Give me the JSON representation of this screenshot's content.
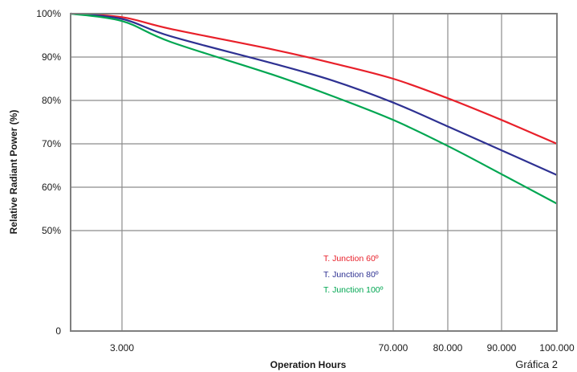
{
  "chart_data": {
    "type": "line",
    "title": "",
    "xlabel": "Operation Hours",
    "ylabel": "Relative Radiant Power (%)",
    "caption": "Gráfica 2",
    "grid": true,
    "x_ticks": [
      {
        "pos": 3000,
        "label": "3.000"
      },
      {
        "pos": 70000,
        "label": "70.000"
      },
      {
        "pos": 80000,
        "label": "80.000"
      },
      {
        "pos": 90000,
        "label": "90.000"
      },
      {
        "pos": 100000,
        "label": "100.000"
      }
    ],
    "y_ticks": [
      {
        "pos": 0,
        "label": "0"
      },
      {
        "pos": 50,
        "label": "50%"
      },
      {
        "pos": 60,
        "label": "60%"
      },
      {
        "pos": 70,
        "label": "70%"
      },
      {
        "pos": 80,
        "label": "80%"
      },
      {
        "pos": 90,
        "label": "90%"
      },
      {
        "pos": 100,
        "label": "100%"
      }
    ],
    "series": [
      {
        "name": "T. Junction 60º",
        "color": "#e8202a",
        "points": [
          [
            0,
            100
          ],
          [
            3000,
            99.2
          ],
          [
            15000,
            96.5
          ],
          [
            40000,
            91.8
          ],
          [
            55000,
            88.6
          ],
          [
            70000,
            85.0
          ],
          [
            80000,
            80.5
          ],
          [
            90000,
            75.5
          ],
          [
            100000,
            70.0
          ]
        ]
      },
      {
        "name": "T. Junction 80º",
        "color": "#2e3192",
        "points": [
          [
            0,
            100
          ],
          [
            3000,
            98.8
          ],
          [
            15000,
            94.8
          ],
          [
            40000,
            88.6
          ],
          [
            55000,
            84.6
          ],
          [
            70000,
            79.5
          ],
          [
            80000,
            74.0
          ],
          [
            90000,
            68.5
          ],
          [
            100000,
            62.8
          ]
        ]
      },
      {
        "name": "T. Junction 100º",
        "color": "#00a651",
        "points": [
          [
            0,
            100
          ],
          [
            3000,
            98.3
          ],
          [
            15000,
            93.5
          ],
          [
            40000,
            86.0
          ],
          [
            55000,
            81.0
          ],
          [
            70000,
            75.5
          ],
          [
            80000,
            69.5
          ],
          [
            90000,
            63.0
          ],
          [
            100000,
            56.2
          ]
        ]
      }
    ]
  }
}
